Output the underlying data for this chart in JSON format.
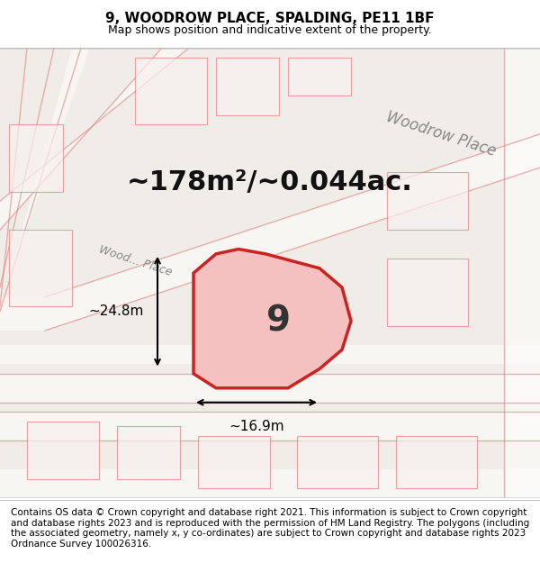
{
  "title": "9, WOODROW PLACE, SPALDING, PE11 1BF",
  "subtitle": "Map shows position and indicative extent of the property.",
  "footer": "Contains OS data © Crown copyright and database right 2021. This information is subject to Crown copyright and database rights 2023 and is reproduced with the permission of HM Land Registry. The polygons (including the associated geometry, namely x, y co-ordinates) are subject to Crown copyright and database rights 2023 Ordnance Survey 100026316.",
  "area_label": "~178m²/~0.044ac.",
  "property_number": "9",
  "dim_width": "~16.9m",
  "dim_height": "~24.8m",
  "background_color": "#f5f5f5",
  "map_background": "#f0ede8",
  "road_color": "#d4c8b8",
  "highlight_color": "#cc2222",
  "highlight_fill": "#f5c0c0",
  "road_label1": "Woodrow Place",
  "road_label2": "Wood... Place",
  "title_fontsize": 11,
  "subtitle_fontsize": 9,
  "footer_fontsize": 7.5,
  "label_fontsize": 22,
  "number_fontsize": 28,
  "dim_fontsize": 11,
  "road_fontsize": 12
}
